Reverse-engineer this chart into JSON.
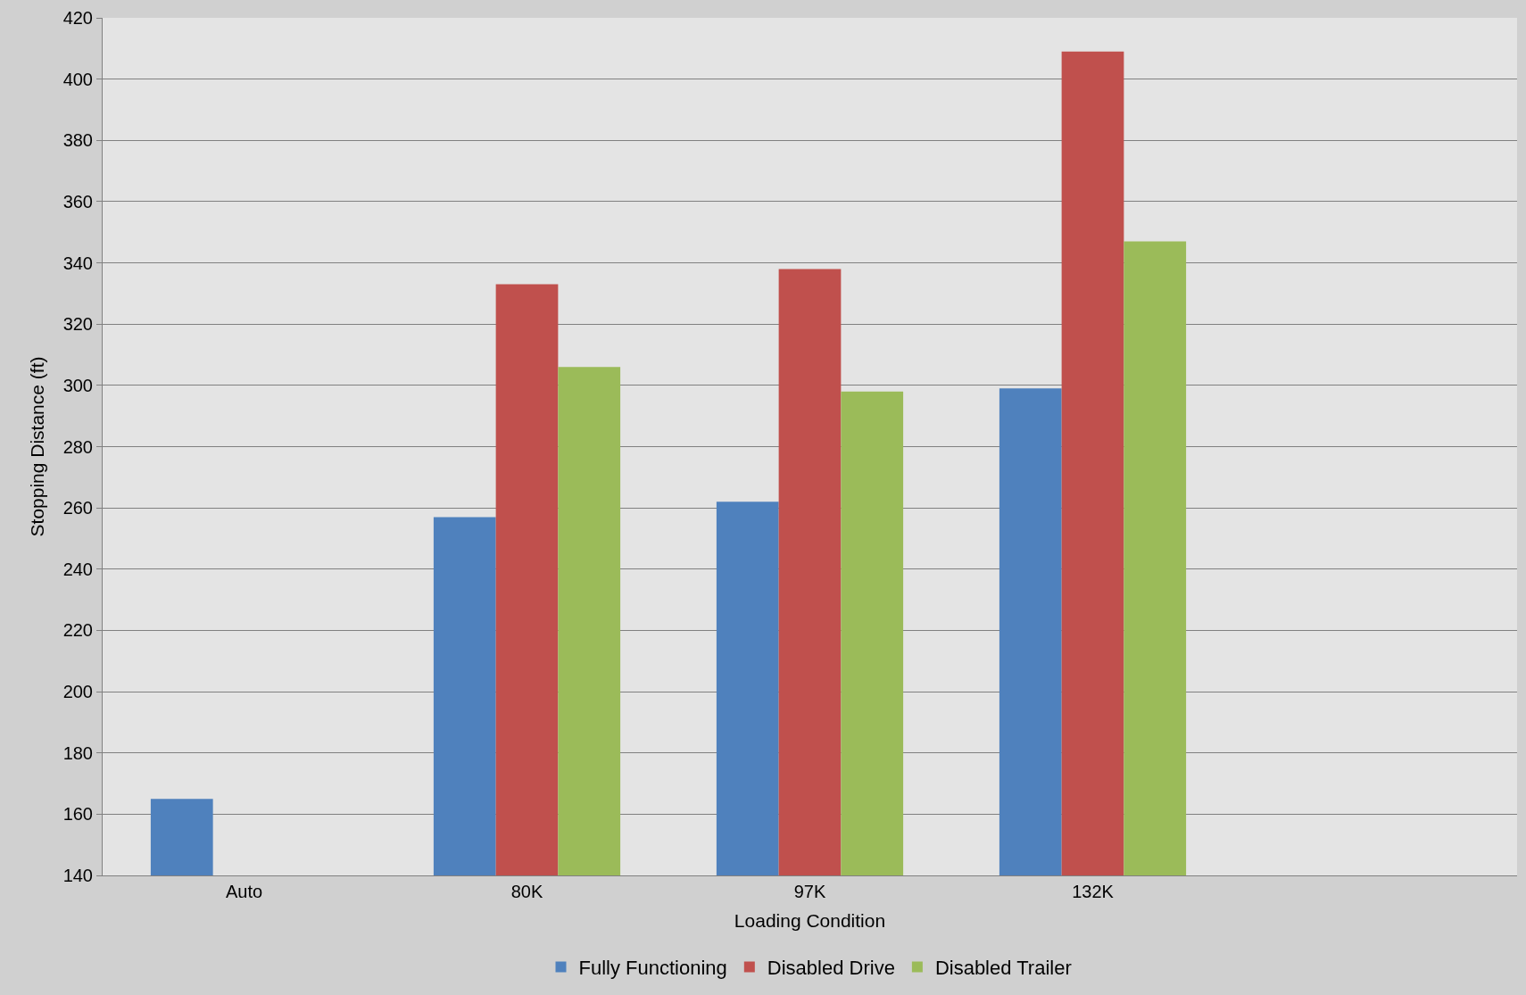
{
  "chart_data": {
    "type": "bar",
    "xlabel": "Loading Condition",
    "ylabel": "Stopping Distance (ft)",
    "categories": [
      "Auto",
      "80K",
      "97K",
      "132K",
      null
    ],
    "series": [
      {
        "name": "Fully Functioning",
        "color": "#4f81bd",
        "values": [
          165,
          257,
          262,
          299,
          null
        ]
      },
      {
        "name": "Disabled Drive",
        "color": "#c0504d",
        "values": [
          null,
          333,
          338,
          409,
          null
        ]
      },
      {
        "name": "Disabled Trailer",
        "color": "#9bbb59",
        "values": [
          null,
          306,
          298,
          347,
          null
        ]
      }
    ],
    "ylim": [
      140,
      420
    ],
    "yticks": [
      140,
      160,
      180,
      200,
      220,
      240,
      260,
      280,
      300,
      320,
      340,
      360,
      380,
      400,
      420
    ],
    "grid": "y",
    "legend": "bottom"
  }
}
